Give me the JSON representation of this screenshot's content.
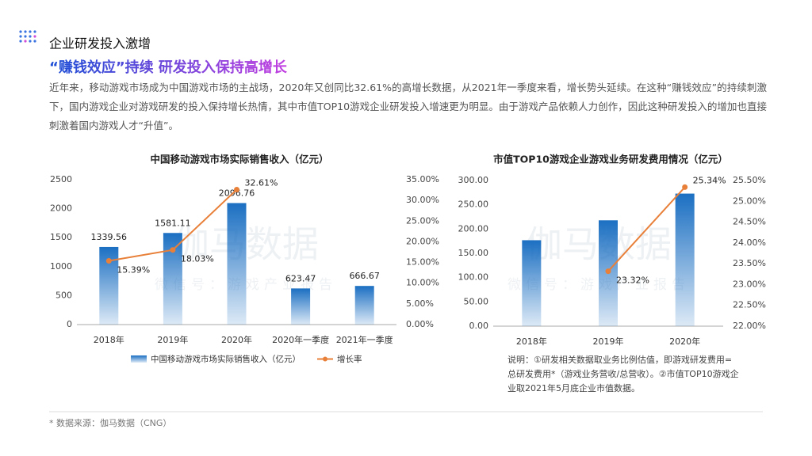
{
  "header": {
    "title": "企业研发投入激增",
    "subtitle": "“赚钱效应”持续  研发投入保持高增长"
  },
  "paragraph": "近年来，移动游戏市场成为中国游戏市场的主战场，2020年又创同比32.61%的高增长数据，从2021年一季度来看，增长势头延续。在这种“赚钱效应”的持续刺激下，国内游戏企业对游戏研发的投入保持增长热情，其中市值TOP10游戏企业研发投入增速更为明显。由于游戏产品依赖人力创作，因此这种研发投入的增加也直接刺激着国内游戏人才“升值”。",
  "watermark": {
    "name": "伽马数据",
    "wechat": "微信号：游戏产业报告"
  },
  "note": "说明：①研发相关数据取业务比例估值，即游戏研发费用=总研发费用*（游戏业务营收/总营收）。②市值TOP10游戏企业取2021年5月底企业市值数据。",
  "source": "* 数据来源：伽马数据（CNG）",
  "chart_data": [
    {
      "type": "bar",
      "title": "中国移动游戏市场实际销售收入（亿元）",
      "categories": [
        "2018年",
        "2019年",
        "2020年",
        "2020年一季度",
        "2021年一季度"
      ],
      "series": [
        {
          "name": "中国移动游戏市场实际销售收入（亿元）",
          "type": "bar",
          "color": "#1b6fc2",
          "values": [
            1339.56,
            1581.11,
            2096.76,
            623.47,
            666.67
          ]
        },
        {
          "name": "增长率",
          "type": "line",
          "axis": "y2",
          "color": "#e8803a",
          "values": [
            15.39,
            18.03,
            32.61,
            null,
            null
          ],
          "value_labels": [
            "15.39%",
            "18.03%",
            "32.61%",
            null,
            null
          ]
        }
      ],
      "ylim": [
        0,
        2500
      ],
      "yticks": [
        0,
        500,
        1000,
        1500,
        2000,
        2500
      ],
      "y2lim": [
        0,
        35
      ],
      "y2ticks": [
        {
          "value": 0,
          "label": "0.00%"
        },
        {
          "value": 5,
          "label": "5.00%"
        },
        {
          "value": 10,
          "label": "10.00%"
        },
        {
          "value": 15,
          "label": "15.00%"
        },
        {
          "value": 20,
          "label": "20.00%"
        },
        {
          "value": 25,
          "label": "25.00%"
        },
        {
          "value": 30,
          "label": "30.00%"
        },
        {
          "value": 35,
          "label": "35.00%"
        }
      ],
      "legend": "bottom"
    },
    {
      "type": "bar",
      "title": "市值TOP10游戏企业游戏业务研发费用情况（亿元）",
      "categories": [
        "2018年",
        "2019年",
        "2020年"
      ],
      "series": [
        {
          "type": "bar",
          "color": "#1b6fc2",
          "values": [
            177,
            218,
            273
          ]
        },
        {
          "type": "line",
          "axis": "y2",
          "color": "#e8803a",
          "values": [
            null,
            23.32,
            25.34
          ],
          "value_labels": [
            null,
            "23.32%",
            "25.34%"
          ]
        }
      ],
      "ylim": [
        0,
        300
      ],
      "yticks": [
        {
          "value": 0,
          "label": "0.00"
        },
        {
          "value": 50,
          "label": "50.00"
        },
        {
          "value": 100,
          "label": "100.00"
        },
        {
          "value": 150,
          "label": "150.00"
        },
        {
          "value": 200,
          "label": "200.00"
        },
        {
          "value": 250,
          "label": "250.00"
        },
        {
          "value": 300,
          "label": "300.00"
        }
      ],
      "y2lim": [
        22,
        25.5
      ],
      "y2ticks": [
        {
          "value": 22,
          "label": "22.00%"
        },
        {
          "value": 22.5,
          "label": "22.50%"
        },
        {
          "value": 23,
          "label": "23.00%"
        },
        {
          "value": 23.5,
          "label": "23.50%"
        },
        {
          "value": 24,
          "label": "24.00%"
        },
        {
          "value": 24.5,
          "label": "24.50%"
        },
        {
          "value": 25,
          "label": "25.00%"
        },
        {
          "value": 25.5,
          "label": "25.50%"
        }
      ]
    }
  ]
}
